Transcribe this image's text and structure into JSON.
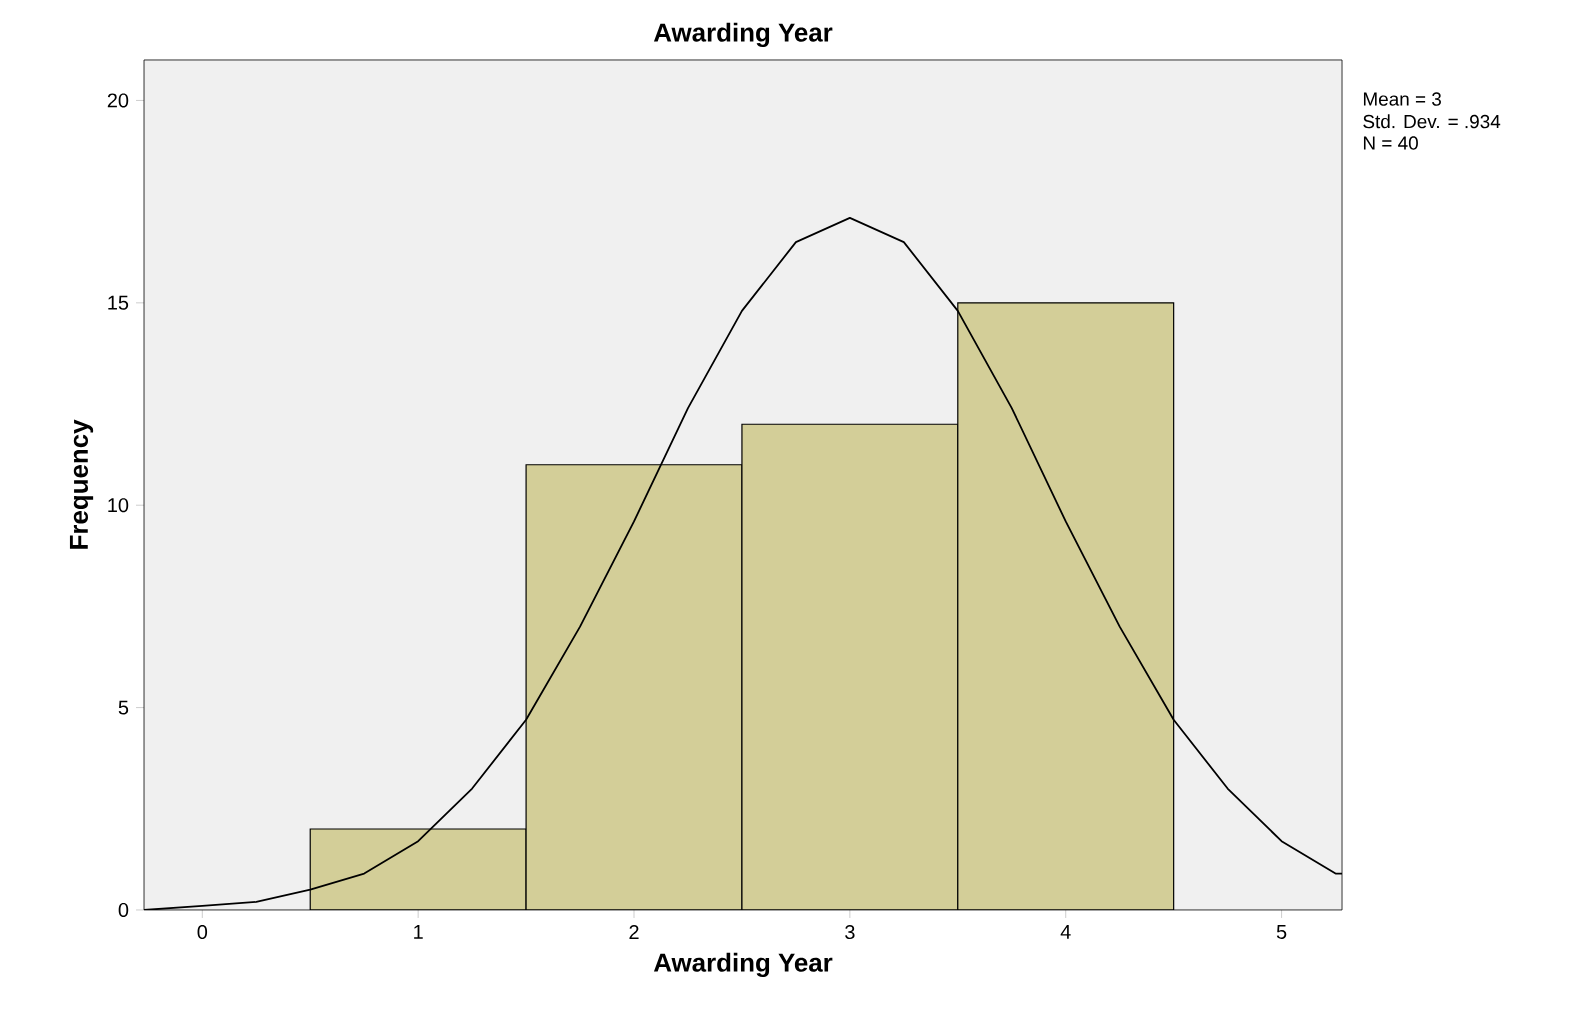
{
  "chart_data": {
    "type": "histogram",
    "title": "Awarding Year",
    "xlabel": "Awarding Year",
    "ylabel": "Frequency",
    "xlim": [
      -0.27,
      5.28
    ],
    "ylim": [
      0,
      21
    ],
    "xticks": [
      0,
      1,
      2,
      3,
      4,
      5
    ],
    "yticks": [
      0,
      5,
      10,
      15,
      20
    ],
    "annotations": [
      "Mean = 3",
      "Std. Dev. = .934",
      "N = 40"
    ],
    "series": [
      {
        "bins": [
          0.5,
          1.5,
          2.5,
          3.5,
          4.5
        ],
        "values": [
          2,
          11,
          12,
          15
        ],
        "color": "#d3ce98"
      },
      {
        "type": "line",
        "color": "#000000",
        "x": [
          -0.27,
          0,
          0.25,
          0.5,
          0.75,
          1,
          1.25,
          1.5,
          1.75,
          2,
          2.25,
          2.5,
          2.75,
          3,
          3.25,
          3.5,
          3.75,
          4,
          4.25,
          4.5,
          4.75,
          5,
          5.25,
          5.28
        ],
        "values": [
          0.0,
          0.1,
          0.2,
          0.5,
          0.9,
          1.7,
          3.0,
          4.7,
          7.0,
          9.6,
          12.4,
          14.8,
          16.5,
          17.1,
          16.5,
          14.8,
          12.4,
          9.6,
          7.0,
          4.7,
          3.0,
          1.7,
          0.9,
          0.9
        ]
      }
    ]
  }
}
